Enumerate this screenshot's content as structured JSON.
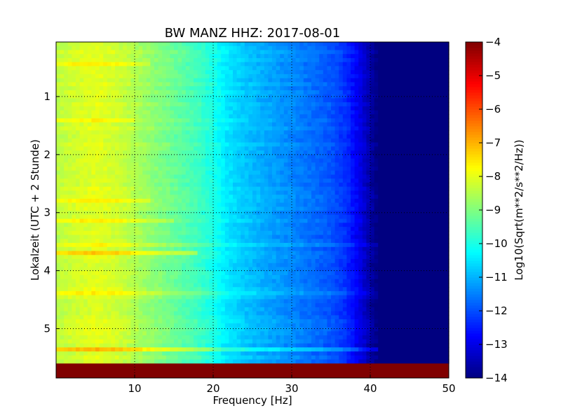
{
  "chart_data": {
    "type": "heatmap",
    "title": "BW MANZ HHZ: 2017-08-01",
    "xlabel": "Frequency [Hz]",
    "ylabel": "Lokalzeit (UTC + 2 Stunde)",
    "xlim": [
      0,
      50
    ],
    "ylim": [
      0.06,
      5.85
    ],
    "xticks": [
      10,
      20,
      30,
      40,
      50
    ],
    "yticks": [
      1,
      2,
      3,
      4,
      5
    ],
    "grid": true,
    "colorbar": {
      "label": "Log10(Sqrt(m**2/s**2/Hz))",
      "colormap": "jet",
      "range": [
        -14,
        -4
      ],
      "ticks": [
        -4,
        -5,
        -6,
        -7,
        -8,
        -9,
        -10,
        -11,
        -12,
        -13,
        -14
      ]
    },
    "frequency_profile": {
      "freq_hz": [
        0,
        2,
        5,
        8,
        10,
        12,
        15,
        18,
        20,
        22,
        25,
        28,
        30,
        33,
        35,
        37,
        38,
        39,
        40,
        41,
        42,
        45,
        50
      ],
      "log_psd": [
        -8.4,
        -8.2,
        -8.0,
        -8.2,
        -8.5,
        -8.8,
        -9.2,
        -9.6,
        -10.0,
        -10.5,
        -10.9,
        -11.2,
        -11.4,
        -11.7,
        -11.9,
        -12.3,
        -12.7,
        -13.1,
        -13.6,
        -14.0,
        -14.0,
        -14.0,
        -14.0
      ]
    },
    "time_anomalies": [
      {
        "time_h": 0.45,
        "fmax_hz": 12,
        "delta": 0.6
      },
      {
        "time_h": 1.4,
        "fmax_hz": 10,
        "delta": 0.3
      },
      {
        "time_h": 2.8,
        "fmax_hz": 12,
        "delta": 0.4
      },
      {
        "time_h": 3.15,
        "fmax_hz": 15,
        "delta": 0.4
      },
      {
        "time_h": 3.55,
        "fmax_hz": 41,
        "delta": 0.3
      },
      {
        "time_h": 3.7,
        "fmax_hz": 18,
        "delta": 0.8
      },
      {
        "time_h": 4.4,
        "fmax_hz": 43,
        "delta": 0.45
      },
      {
        "time_h": 5.35,
        "fmax_hz": 42,
        "delta": 0.9
      }
    ],
    "data_gap": {
      "time_from_h": 5.6,
      "time_to_h": 5.85,
      "value": -4
    }
  }
}
